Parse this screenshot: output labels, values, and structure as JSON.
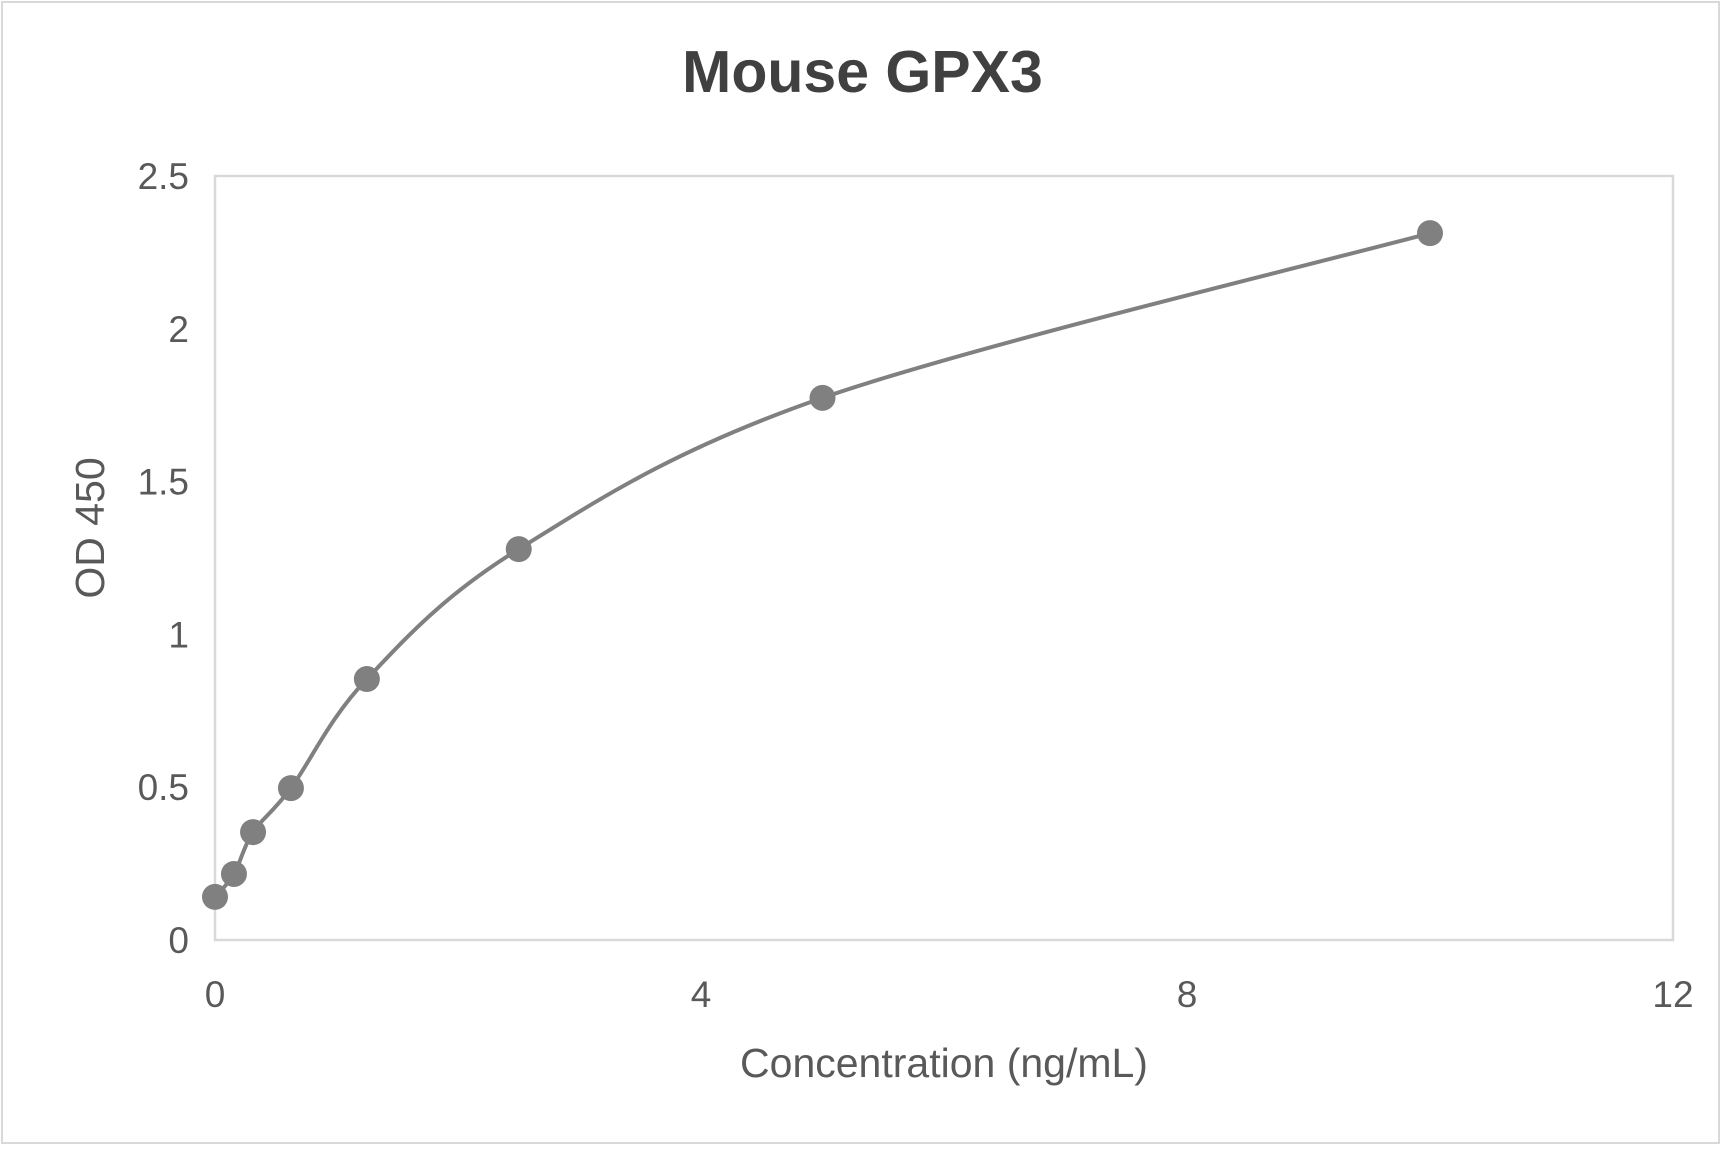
{
  "chart_data": {
    "type": "line",
    "title": "Mouse GPX3",
    "xlabel": "Concentration (ng/mL)",
    "ylabel": "OD 450",
    "xlim": [
      0,
      12
    ],
    "ylim": [
      0,
      2.5
    ],
    "x_ticks": [
      "0",
      "4",
      "8",
      "12"
    ],
    "y_ticks": [
      "0",
      "0.5",
      "1",
      "1.5",
      "2",
      "2.5"
    ],
    "grid": false,
    "legend": null,
    "smoothed": true,
    "marker": "circle",
    "series": [
      {
        "name": "Mouse GPX3",
        "color": "#808080",
        "x": [
          0,
          0.156,
          0.313,
          0.625,
          1.25,
          2.5,
          5,
          10
        ],
        "y": [
          0.141,
          0.216,
          0.353,
          0.497,
          0.854,
          1.279,
          1.774,
          2.313
        ]
      }
    ]
  },
  "colors": {
    "line": "#808080",
    "plot_border": "#d9d9d9",
    "text": "#595959",
    "title": "#404040"
  }
}
